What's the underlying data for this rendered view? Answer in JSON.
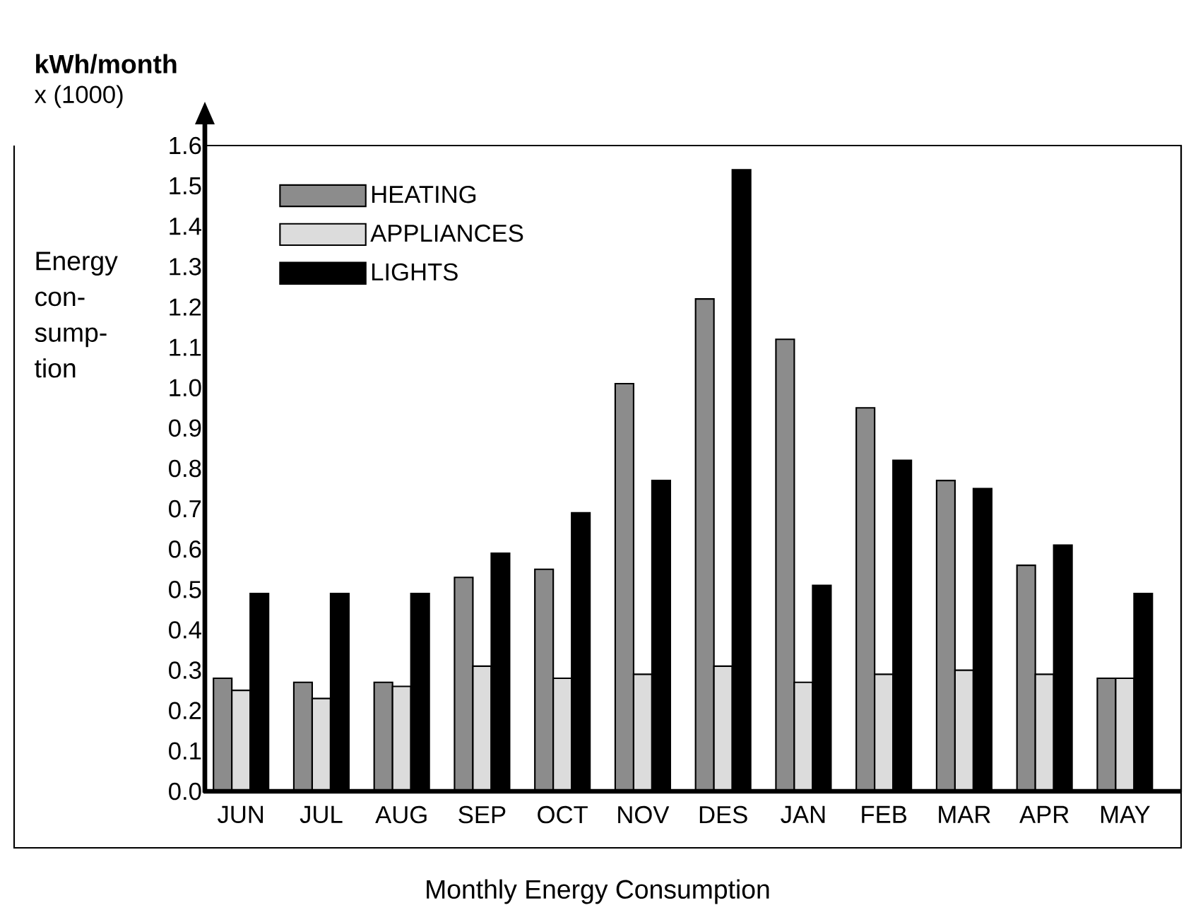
{
  "chart_data": {
    "type": "bar",
    "title": "Monthly Energy Consumption",
    "ylabel": "Energy con-sump-tion",
    "annotations": [
      "**kWh/month**",
      "x (1000)"
    ],
    "categories": [
      "JUN",
      "JUL",
      "AUG",
      "SEP",
      "OCT",
      "NOV",
      "DES",
      "JAN",
      "FEB",
      "MAR",
      "APR",
      "MAY"
    ],
    "series": [
      {
        "name": "HEATING",
        "color": "#8c8c8c",
        "values": [
          0.28,
          0.27,
          0.27,
          0.53,
          0.55,
          1.01,
          1.22,
          1.12,
          0.95,
          0.77,
          0.56,
          0.28
        ]
      },
      {
        "name": "APPLIANCES",
        "color": "#dcdcdc",
        "values": [
          0.25,
          0.23,
          0.26,
          0.31,
          0.28,
          0.29,
          0.31,
          0.27,
          0.29,
          0.3,
          0.29,
          0.28
        ]
      },
      {
        "name": "LIGHTS",
        "color": "#000000",
        "values": [
          0.49,
          0.49,
          0.49,
          0.59,
          0.69,
          0.77,
          1.54,
          0.51,
          0.82,
          0.75,
          0.61,
          0.49
        ]
      }
    ],
    "ylim": [
      0,
      1.6
    ],
    "yticks": [
      {
        "value": 0,
        "label": "0.0"
      },
      {
        "value": 0.1,
        "label": "0.1"
      },
      {
        "value": 0.2,
        "label": "0.2"
      },
      {
        "value": 0.3,
        "label": "0.3"
      },
      {
        "value": 0.4,
        "label": "0.4"
      },
      {
        "value": 0.5,
        "label": "0.5"
      },
      {
        "value": 0.6,
        "label": "0.6"
      },
      {
        "value": 0.7,
        "label": "0.7"
      },
      {
        "value": 0.8,
        "label": "0.8"
      },
      {
        "value": 0.9,
        "label": "0.9"
      },
      {
        "value": 1.0,
        "label": "1.0"
      },
      {
        "value": 1.1,
        "label": "1.1"
      },
      {
        "value": 1.2,
        "label": "1.2"
      },
      {
        "value": 1.3,
        "label": "1.3"
      },
      {
        "value": 1.4,
        "label": "1.4"
      },
      {
        "value": 1.5,
        "label": "1.5"
      },
      {
        "value": 1.6,
        "label": "1.6"
      }
    ],
    "grid": false,
    "legend": "top left"
  }
}
